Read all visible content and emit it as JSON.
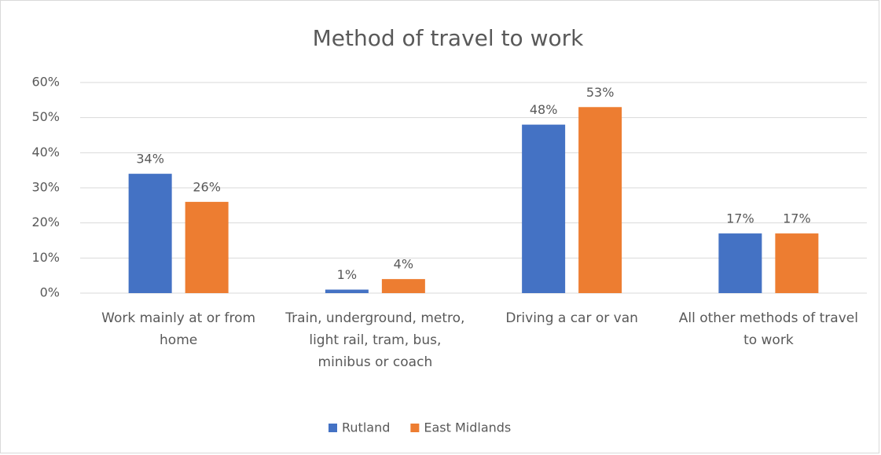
{
  "chart_data": {
    "type": "bar",
    "title": "Method of travel to work",
    "categories": [
      "Work mainly at or from home",
      "Train, underground, metro, light rail, tram, bus, minibus or coach",
      "Driving a car or van",
      "All other methods of travel to work"
    ],
    "series": [
      {
        "name": "Rutland",
        "color": "#4472c4",
        "values": [
          34,
          1,
          48,
          17
        ],
        "value_labels": [
          "34%",
          "1%",
          "48%",
          "17%"
        ]
      },
      {
        "name": "East Midlands",
        "color": "#ed7d31",
        "values": [
          26,
          4,
          53,
          17
        ],
        "value_labels": [
          "26%",
          "4%",
          "53%",
          "17%"
        ]
      }
    ],
    "ylim": [
      0,
      60
    ],
    "yticks": [
      {
        "value": 0,
        "label": "0%"
      },
      {
        "value": 10,
        "label": "10%"
      },
      {
        "value": 20,
        "label": "20%"
      },
      {
        "value": 30,
        "label": "30%"
      },
      {
        "value": 40,
        "label": "40%"
      },
      {
        "value": 50,
        "label": "50%"
      },
      {
        "value": 60,
        "label": "60%"
      }
    ],
    "grid": true,
    "legend": "bottom"
  }
}
